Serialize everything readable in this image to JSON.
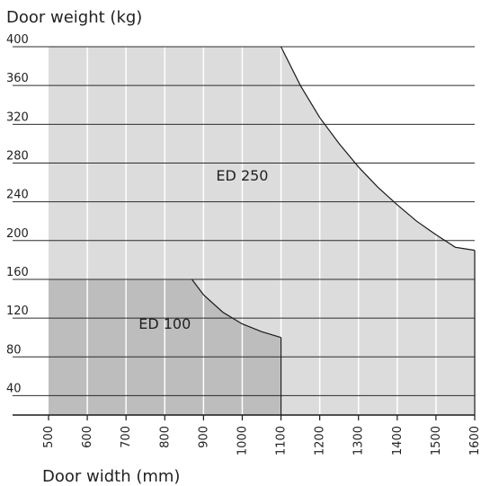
{
  "chart_data": {
    "type": "area",
    "title": "",
    "ylabel": "Door weight (kg)",
    "xlabel": "Door width (mm)",
    "xlim": [
      500,
      1600
    ],
    "ylim": [
      20,
      400
    ],
    "x_ticks": [
      500,
      600,
      700,
      800,
      900,
      1000,
      1100,
      1200,
      1300,
      1400,
      1500,
      1600
    ],
    "y_ticks": [
      40,
      80,
      120,
      160,
      200,
      240,
      280,
      320,
      360,
      400
    ],
    "grid": true,
    "series": [
      {
        "name": "ED 250",
        "color": "#dcdcdc",
        "boundary": [
          {
            "x": 500,
            "y": 400
          },
          {
            "x": 1100,
            "y": 400
          },
          {
            "x": 1150,
            "y": 360
          },
          {
            "x": 1200,
            "y": 327
          },
          {
            "x": 1250,
            "y": 300
          },
          {
            "x": 1300,
            "y": 276
          },
          {
            "x": 1350,
            "y": 255
          },
          {
            "x": 1400,
            "y": 237
          },
          {
            "x": 1450,
            "y": 220
          },
          {
            "x": 1500,
            "y": 206
          },
          {
            "x": 1550,
            "y": 193
          },
          {
            "x": 1600,
            "y": 190
          }
        ]
      },
      {
        "name": "ED 100",
        "color": "#bdbdbd",
        "boundary": [
          {
            "x": 500,
            "y": 160
          },
          {
            "x": 870,
            "y": 160
          },
          {
            "x": 900,
            "y": 144
          },
          {
            "x": 950,
            "y": 126
          },
          {
            "x": 1000,
            "y": 114
          },
          {
            "x": 1050,
            "y": 106
          },
          {
            "x": 1100,
            "y": 100
          }
        ]
      }
    ],
    "annotations": [
      {
        "text": "ED 250",
        "x": 1000,
        "y": 262
      },
      {
        "text": "ED 100",
        "x": 800,
        "y": 109
      }
    ]
  }
}
